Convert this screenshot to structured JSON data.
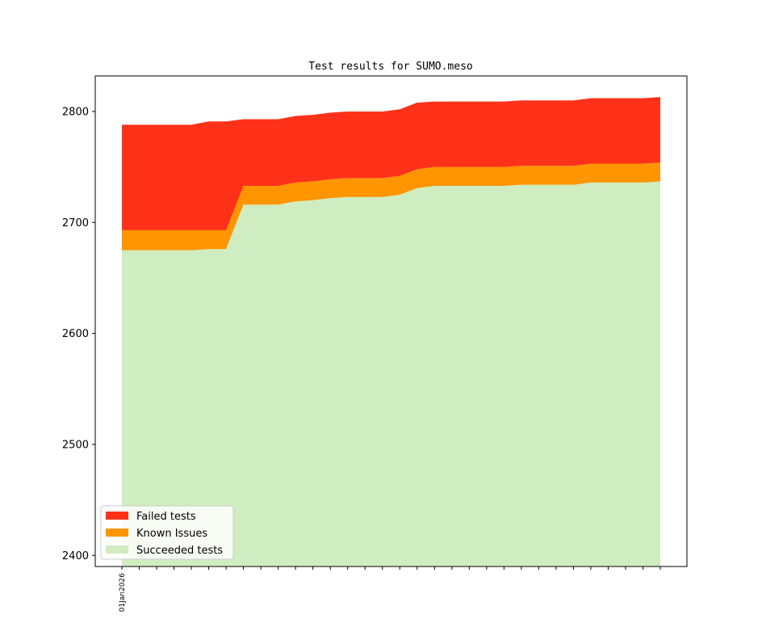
{
  "chart_data": {
    "type": "area",
    "stacked": true,
    "title": "Test results for SUMO.meso",
    "xlabel": "",
    "ylabel": "",
    "ylim": [
      2390,
      2832
    ],
    "yticks": [
      "2400",
      "2500",
      "2600",
      "2700",
      "2800"
    ],
    "xtick_labels": [
      "01Jan2026"
    ],
    "baseline": 2390,
    "grid": false,
    "legend_position": "lower-left",
    "series": [
      {
        "name": "Succeeded tests",
        "color": "#cfedc0",
        "values": [
          2675,
          2675,
          2675,
          2675,
          2675,
          2676,
          2676,
          2716,
          2716,
          2716,
          2719,
          2720,
          2722,
          2723,
          2723,
          2723,
          2725,
          2731,
          2733,
          2733,
          2733,
          2733,
          2733,
          2734,
          2734,
          2734,
          2734,
          2736,
          2736,
          2736,
          2736,
          2737
        ]
      },
      {
        "name": "Known Issues",
        "color": "#ff9500",
        "values": [
          2693,
          2693,
          2693,
          2693,
          2693,
          2693,
          2693,
          2733,
          2733,
          2733,
          2736,
          2737,
          2739,
          2740,
          2740,
          2740,
          2742,
          2748,
          2750,
          2750,
          2750,
          2750,
          2750,
          2751,
          2751,
          2751,
          2751,
          2753,
          2753,
          2753,
          2753,
          2754
        ]
      },
      {
        "name": "Failed tests",
        "color": "#ff3219",
        "values": [
          2788,
          2788,
          2788,
          2788,
          2788,
          2791,
          2791,
          2793,
          2793,
          2793,
          2796,
          2797,
          2799,
          2800,
          2800,
          2800,
          2802,
          2808,
          2809,
          2809,
          2809,
          2809,
          2809,
          2810,
          2810,
          2810,
          2810,
          2812,
          2812,
          2812,
          2812,
          2813
        ]
      }
    ],
    "legend_order": [
      "Failed tests",
      "Known Issues",
      "Succeeded tests"
    ]
  }
}
